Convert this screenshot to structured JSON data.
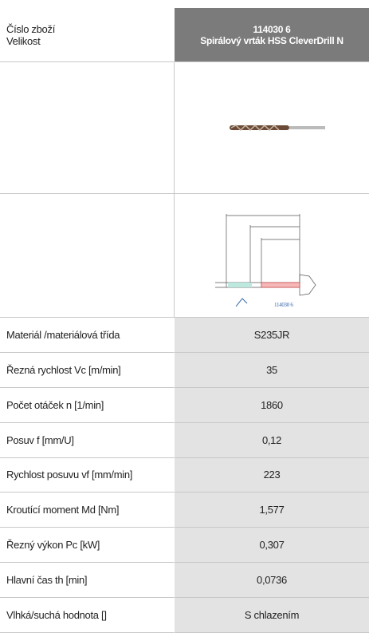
{
  "header": {
    "left": [
      "Číslo zboží",
      "Velikost"
    ],
    "right": [
      "114030 6",
      "Spirálový vrták HSS CleverDrill N"
    ]
  },
  "drawing_label": "114030 6",
  "table": {
    "rows": [
      [
        "Materiál /materiálová třída",
        "S235JR"
      ],
      [
        "Řezná rychlost Vc [m/min]",
        "35"
      ],
      [
        "Počet otáček n [1/min]",
        "1860"
      ],
      [
        "Posuv f [mm/U]",
        "0,12"
      ],
      [
        "Rychlost posuvu vf [mm/min]",
        "223"
      ],
      [
        "Kroutící moment Md [Nm]",
        "1,577"
      ],
      [
        "Řezný výkon Pc [kW]",
        "0,307"
      ],
      [
        "Hlavní čas th [min]",
        "0,0736"
      ],
      [
        "Vlhká/suchá hodnota []",
        "S chlazením"
      ]
    ]
  }
}
